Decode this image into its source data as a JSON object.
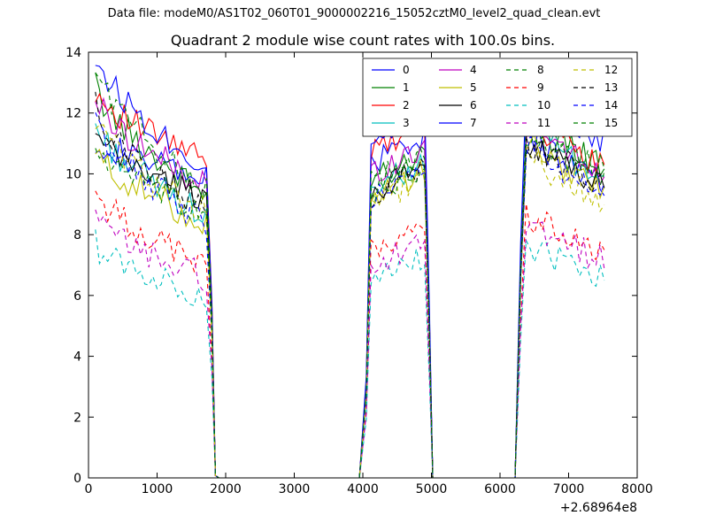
{
  "figure": {
    "supertitle": "Data file: modeM0/AS1T02_060T01_9000002216_15052cztM0_level2_quad_clean.evt"
  },
  "chart_data": {
    "type": "line",
    "title": "Quadrant 2 module wise count rates with 100.0s bins.",
    "xlabel": "",
    "ylabel": "",
    "xlim": [
      0,
      8000
    ],
    "ylim": [
      0,
      14
    ],
    "x_offset_label": "+2.68964e8",
    "x_ticks": [
      "0",
      "1000",
      "2000",
      "3000",
      "4000",
      "5000",
      "6000",
      "7000",
      "8000"
    ],
    "y_ticks": [
      "0",
      "2",
      "4",
      "6",
      "8",
      "10",
      "12",
      "14"
    ],
    "grid": false,
    "legend": {
      "placement": "top-right",
      "columns": 4
    },
    "segments": [
      {
        "x_start": 100,
        "step": 60,
        "count": 28
      },
      {
        "x_start": 4120,
        "step": 60,
        "count": 14
      },
      {
        "x_start": 6380,
        "step": 60,
        "count": 20
      }
    ],
    "series": [
      {
        "name": "0",
        "color": "#0000ff",
        "dash": "solid",
        "start": [
          11.2,
          9.8,
          10.4,
          11.3
        ]
      },
      {
        "name": "1",
        "color": "#008000",
        "dash": "solid",
        "start": [
          12.9,
          9.3,
          9.8,
          11.8
        ]
      },
      {
        "name": "2",
        "color": "#ff0000",
        "dash": "solid",
        "start": [
          12.8,
          10.4,
          10.7,
          11.8
        ]
      },
      {
        "name": "3",
        "color": "#00bfbf",
        "dash": "solid",
        "start": [
          11.6,
          8.6,
          9.5,
          11.5
        ]
      },
      {
        "name": "4",
        "color": "#bf00bf",
        "dash": "solid",
        "start": [
          12.5,
          9.6,
          10.0,
          11.6
        ]
      },
      {
        "name": "5",
        "color": "#bfbf00",
        "dash": "solid",
        "start": [
          10.7,
          8.4,
          9.2,
          11.0
        ]
      },
      {
        "name": "6",
        "color": "#000000",
        "dash": "solid",
        "start": [
          11.2,
          9.2,
          9.4,
          11.0
        ]
      },
      {
        "name": "7",
        "color": "#0000ff",
        "dash": "solid",
        "start": [
          13.9,
          10.2,
          11.2,
          12.9
        ]
      },
      {
        "name": "8",
        "color": "#008000",
        "dash": "dashed",
        "start": [
          13.5,
          9.5,
          9.7,
          11.7
        ]
      },
      {
        "name": "9",
        "color": "#ff0000",
        "dash": "dashed",
        "start": [
          9.4,
          7.0,
          7.4,
          8.6
        ]
      },
      {
        "name": "10",
        "color": "#00bfbf",
        "dash": "dashed",
        "start": [
          7.7,
          6.0,
          6.4,
          7.6
        ]
      },
      {
        "name": "11",
        "color": "#bf00bf",
        "dash": "dashed",
        "start": [
          8.5,
          6.6,
          7.0,
          8.3
        ]
      },
      {
        "name": "12",
        "color": "#bfbf00",
        "dash": "dashed",
        "start": [
          11.8,
          8.7,
          9.0,
          10.5
        ]
      },
      {
        "name": "13",
        "color": "#000000",
        "dash": "dashed",
        "start": [
          12.2,
          8.8,
          9.3,
          11.1
        ]
      },
      {
        "name": "14",
        "color": "#0000ff",
        "dash": "dashed",
        "start": [
          11.7,
          8.4,
          9.2,
          10.9
        ]
      },
      {
        "name": "15",
        "color": "#008000",
        "dash": "dashed",
        "start": [
          10.9,
          8.6,
          9.3,
          11.4
        ]
      }
    ]
  }
}
